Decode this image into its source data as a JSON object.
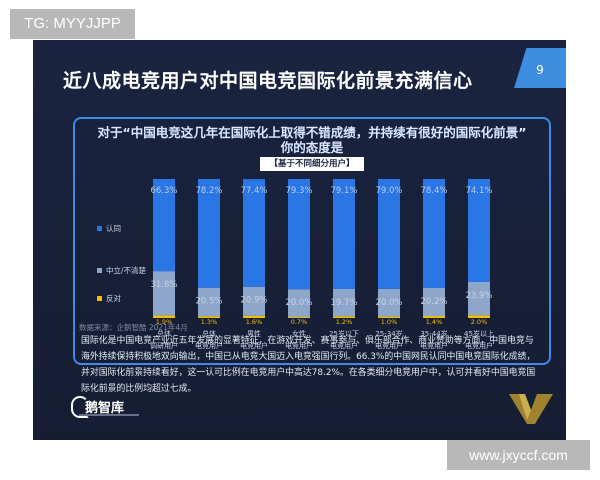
{
  "watermark_tag": "TG: MYYJJPP",
  "watermark_url": "www.jxyccf.com",
  "slide": {
    "headline": "近八成电竞用户对中国电竞国际化前景充满信心",
    "page_number": "9",
    "question_line1": "对于“中国电竞这几年在国际化上取得不错成绩，并持续有很好的国际化前景”",
    "question_line2": "你的态度是",
    "subtitle": "【基于不同细分用户】",
    "source": "数据来源：企鹅智酷 2021年4月",
    "paragraph": "国际化是中国电竞产业近五年发展的显著特征，在游戏开发、赛事参与、俱乐部合作、商业赞助等方面，中国电竞与海外持续保持积极地双向输出，中国已从电竞大国迈入电竞强国行列。66.3%的中国网民认同中国电竞国际化成绩，并对国际化前景持续看好，这一认可比例在电竞用户中高达78.2%。在各类细分电竞用户中，认可并看好中国电竞国际化前景的比例均超过七成。",
    "logo_text": "鹅智库"
  },
  "colors": {
    "agree": "#2b76e5",
    "neutral": "#8ea6c9",
    "oppose": "#f2c200",
    "accent": "#3d8ee0"
  },
  "chart_data": {
    "type": "bar",
    "stacked": true,
    "categories": [
      [
        "总体",
        "调研用户"
      ],
      [
        "总体",
        "电竞用户"
      ],
      [
        "男性",
        "电竞用户"
      ],
      [
        "女性",
        "电竞用户"
      ],
      [
        "25岁以下",
        "电竞用户"
      ],
      [
        "25-34岁",
        "电竞用户"
      ],
      [
        "35-44岁",
        "电竞用户"
      ],
      [
        "45岁以上",
        "电竞用户"
      ]
    ],
    "series": [
      {
        "name": "反对",
        "values": [
          1.9,
          1.3,
          1.6,
          0.7,
          1.2,
          1.0,
          1.4,
          2.0
        ],
        "labels": [
          "1.9%",
          "1.3%",
          "1.6%",
          "0.7%",
          "1.2%",
          "1.0%",
          "1.4%",
          "2.0%"
        ]
      },
      {
        "name": "中立/不清楚",
        "values": [
          31.8,
          20.5,
          20.9,
          20.0,
          19.7,
          20.0,
          20.2,
          23.9
        ],
        "labels": [
          "31.8%",
          "20.5%",
          "20.9%",
          "20.0%",
          "19.7%",
          "20.0%",
          "20.2%",
          "23.9%"
        ]
      },
      {
        "name": "认同",
        "values": [
          66.3,
          78.2,
          77.4,
          79.3,
          79.1,
          79.0,
          78.4,
          74.1
        ],
        "labels": [
          "66.3%",
          "78.2%",
          "77.4%",
          "79.3%",
          "79.1%",
          "79.0%",
          "78.4%",
          "74.1%"
        ]
      }
    ],
    "legend_position": "left",
    "ylim": [
      0,
      100
    ],
    "grid": false
  }
}
